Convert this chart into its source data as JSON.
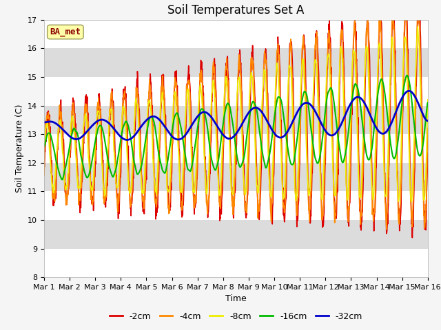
{
  "title": "Soil Temperatures Set A",
  "xlabel": "Time",
  "ylabel": "Soil Temperature (C)",
  "ylim": [
    8.0,
    17.0
  ],
  "yticks": [
    8.0,
    9.0,
    10.0,
    11.0,
    12.0,
    13.0,
    14.0,
    15.0,
    16.0,
    17.0
  ],
  "annotation": "BA_met",
  "annotation_fontsize": 9,
  "plot_bg_color": "#e8e8e8",
  "band_colors": [
    "#ffffff",
    "#dcdcdc"
  ],
  "series_colors": [
    "#dd0000",
    "#ff8800",
    "#eeee00",
    "#00bb00",
    "#0000cc"
  ],
  "series_labels": [
    "-2cm",
    "-4cm",
    "-8cm",
    "-16cm",
    "-32cm"
  ],
  "series_linewidths": [
    1.2,
    1.2,
    1.2,
    1.5,
    2.0
  ],
  "n_days": 15,
  "points_per_day": 96,
  "title_fontsize": 12,
  "axis_fontsize": 9,
  "tick_fontsize": 8
}
